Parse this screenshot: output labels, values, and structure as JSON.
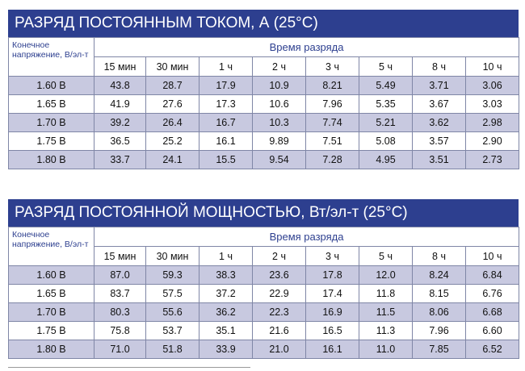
{
  "tables": [
    {
      "title": "РАЗРЯД ПОСТОЯННЫМ ТОКОМ, А (25°C)",
      "corner_label": "Конечное напряжение, В/эл-т",
      "group_label": "Время разряда",
      "times": [
        "15 мин",
        "30 мин",
        "1 ч",
        "2 ч",
        "3 ч",
        "5 ч",
        "8 ч",
        "10 ч"
      ],
      "rows": [
        {
          "voltage": "1.60 В",
          "values": [
            "43.8",
            "28.7",
            "17.9",
            "10.9",
            "8.21",
            "5.49",
            "3.71",
            "3.06"
          ]
        },
        {
          "voltage": "1.65 В",
          "values": [
            "41.9",
            "27.6",
            "17.3",
            "10.6",
            "7.96",
            "5.35",
            "3.67",
            "3.03"
          ]
        },
        {
          "voltage": "1.70 В",
          "values": [
            "39.2",
            "26.4",
            "16.7",
            "10.3",
            "7.74",
            "5.21",
            "3.62",
            "2.98"
          ]
        },
        {
          "voltage": "1.75 В",
          "values": [
            "36.5",
            "25.2",
            "16.1",
            "9.89",
            "7.51",
            "5.08",
            "3.57",
            "2.90"
          ]
        },
        {
          "voltage": "1.80 В",
          "values": [
            "33.7",
            "24.1",
            "15.5",
            "9.54",
            "7.28",
            "4.95",
            "3.51",
            "2.73"
          ]
        }
      ]
    },
    {
      "title": "РАЗРЯД ПОСТОЯННОЙ МОЩНОСТЬЮ, Вт/эл-т (25°C)",
      "corner_label": "Конечное напряжение, В/эл-т",
      "group_label": "Время разряда",
      "times": [
        "15 мин",
        "30 мин",
        "1 ч",
        "2 ч",
        "3 ч",
        "5 ч",
        "8 ч",
        "10 ч"
      ],
      "rows": [
        {
          "voltage": "1.60 В",
          "values": [
            "87.0",
            "59.3",
            "38.3",
            "23.6",
            "17.8",
            "12.0",
            "8.24",
            "6.84"
          ]
        },
        {
          "voltage": "1.65 В",
          "values": [
            "83.7",
            "57.5",
            "37.2",
            "22.9",
            "17.4",
            "11.8",
            "8.15",
            "6.76"
          ]
        },
        {
          "voltage": "1.70 В",
          "values": [
            "80.3",
            "55.6",
            "36.2",
            "22.3",
            "16.9",
            "11.5",
            "8.06",
            "6.68"
          ]
        },
        {
          "voltage": "1.75 В",
          "values": [
            "75.8",
            "53.7",
            "35.1",
            "21.6",
            "16.5",
            "11.3",
            "7.96",
            "6.60"
          ]
        },
        {
          "voltage": "1.80 В",
          "values": [
            "71.0",
            "51.8",
            "33.9",
            "21.0",
            "16.1",
            "11.0",
            "7.85",
            "6.52"
          ]
        }
      ]
    }
  ],
  "colors": {
    "header": "#2d3f8f",
    "row_shade": "#c8c9e0",
    "border": "#7f86a6"
  }
}
